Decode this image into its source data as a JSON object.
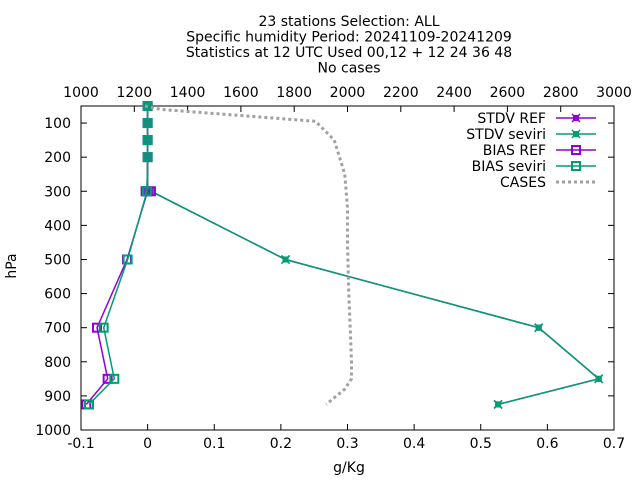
{
  "chart_data": {
    "type": "line",
    "title_lines": [
      "23 stations Selection: ALL",
      "Specific humidity  Period: 20241109-20241209",
      "Statistics at 12 UTC  Used 00,12 + 12 24 36 48",
      "No cases"
    ],
    "xlabel": "g/Kg",
    "ylabel": "hPa",
    "xlim": [
      -0.1,
      0.7
    ],
    "ylim": [
      1000,
      50
    ],
    "x2lim": [
      1000,
      3000
    ],
    "x_ticks": [
      "-0.1",
      "0",
      "0.1",
      "0.2",
      "0.3",
      "0.4",
      "0.5",
      "0.6",
      "0.7"
    ],
    "x2_ticks": [
      "1000",
      "1200",
      "1400",
      "1600",
      "1800",
      "2000",
      "2200",
      "2400",
      "2600",
      "2800",
      "3000"
    ],
    "y_ticks": [
      "100",
      "200",
      "300",
      "400",
      "500",
      "600",
      "700",
      "800",
      "900",
      "1000"
    ],
    "legend_position": "top-right",
    "series": [
      {
        "name": "STDV REF",
        "axis": "x",
        "color": "#9400d3",
        "marker": "x",
        "points": [
          [
            0.0,
            50
          ],
          [
            0.0,
            100
          ],
          [
            0.0,
            150
          ],
          [
            0.0,
            200
          ],
          [
            0.0,
            300
          ],
          [
            0.005,
            300
          ],
          [
            0.207,
            500
          ],
          [
            0.587,
            700
          ],
          [
            0.677,
            850
          ],
          [
            0.526,
            925
          ]
        ]
      },
      {
        "name": "STDV seviri",
        "axis": "x",
        "color": "#009e73",
        "marker": "x",
        "points": [
          [
            0.0,
            50
          ],
          [
            0.0,
            100
          ],
          [
            0.0,
            150
          ],
          [
            0.0,
            200
          ],
          [
            0.0,
            300
          ],
          [
            0.005,
            300
          ],
          [
            0.207,
            500
          ],
          [
            0.587,
            700
          ],
          [
            0.677,
            850
          ],
          [
            0.526,
            925
          ]
        ]
      },
      {
        "name": "BIAS REF",
        "axis": "x",
        "color": "#9400d3",
        "marker": "square",
        "points": [
          [
            0.0,
            50
          ],
          [
            0.0,
            100
          ],
          [
            0.0,
            150
          ],
          [
            0.0,
            200
          ],
          [
            -0.001,
            300
          ],
          [
            -0.003,
            300
          ],
          [
            -0.003,
            300
          ],
          [
            -0.003,
            300
          ],
          [
            -0.003,
            300
          ],
          [
            -0.003,
            300
          ],
          [
            -0.003,
            300
          ],
          [
            0.0,
            300
          ],
          [
            -0.003,
            300
          ],
          [
            -0.003,
            300
          ],
          [
            -0.003,
            300
          ],
          [
            -0.003,
            300
          ],
          [
            -0.003,
            300
          ],
          [
            -0.003,
            300
          ],
          [
            -0.003,
            300
          ],
          [
            -0.003,
            300
          ],
          [
            -0.003,
            300
          ],
          [
            -0.003,
            300
          ],
          [
            -0.003,
            300
          ],
          [
            -0.003,
            300
          ],
          [
            -0.003,
            300
          ],
          [
            -0.003,
            300
          ],
          [
            0.0,
            300
          ],
          [
            0.005,
            300
          ],
          [
            0.005,
            300
          ],
          [
            0.005,
            300
          ],
          [
            0.005,
            300
          ],
          [
            0.005,
            300
          ],
          [
            0.005,
            300
          ],
          [
            0.005,
            300
          ],
          [
            0.005,
            300
          ],
          [
            0.005,
            300
          ],
          [
            0.005,
            300
          ],
          [
            0.005,
            300
          ],
          [
            0.005,
            300
          ],
          [
            0.005,
            300
          ],
          [
            0.005,
            300
          ],
          [
            0.005,
            300
          ],
          [
            0.005,
            300
          ],
          [
            0.005,
            300
          ],
          [
            0.005,
            300
          ],
          [
            0.005,
            300
          ],
          [
            0.005,
            300
          ],
          [
            0.005,
            300
          ],
          [
            0.005,
            300
          ],
          [
            0.005,
            300
          ],
          [
            0.005,
            300
          ],
          [
            0.005,
            300
          ],
          [
            0.005,
            300
          ],
          [
            0.005,
            300
          ],
          [
            0.005,
            300
          ],
          [
            0.005,
            300
          ],
          [
            0.005,
            300
          ],
          [
            0.005,
            300
          ],
          [
            -0.003,
            300
          ],
          [
            -0.003,
            300
          ],
          [
            -0.003,
            300
          ],
          [
            -0.003,
            300
          ],
          [
            -0.003,
            300
          ],
          [
            -0.003,
            300
          ],
          [
            -0.003,
            300
          ],
          [
            -0.003,
            300
          ],
          [
            -0.003,
            300
          ],
          [
            -0.003,
            300
          ],
          [
            -0.003,
            300
          ],
          [
            -0.003,
            300
          ],
          [
            -0.003,
            300
          ],
          [
            -0.003,
            300
          ],
          [
            0.0,
            300
          ],
          [
            0.0,
            300
          ],
          [
            0.0,
            300
          ],
          [
            0.0,
            300
          ],
          [
            -0.031,
            500
          ],
          [
            -0.076,
            700
          ],
          [
            -0.06,
            850
          ],
          [
            -0.092,
            925
          ]
        ]
      },
      {
        "name": "BIAS seviri",
        "axis": "x",
        "color": "#009e73",
        "marker": "square",
        "points": [
          [
            0.0,
            50
          ],
          [
            0.0,
            100
          ],
          [
            0.0,
            150
          ],
          [
            0.0,
            200
          ],
          [
            -0.001,
            300
          ],
          [
            -0.03,
            500
          ],
          [
            -0.066,
            700
          ],
          [
            -0.05,
            850
          ],
          [
            -0.088,
            925
          ]
        ]
      },
      {
        "name": "CASES",
        "axis": "x2",
        "color": "#a0a0a0",
        "marker": "none",
        "dashed": true,
        "points": [
          [
            1240,
            50
          ],
          [
            1300,
            60
          ],
          [
            1880,
            95
          ],
          [
            1950,
            150
          ],
          [
            1990,
            250
          ],
          [
            2000,
            350
          ],
          [
            2000,
            450
          ],
          [
            2005,
            600
          ],
          [
            2010,
            700
          ],
          [
            2015,
            800
          ],
          [
            2015,
            850
          ],
          [
            1990,
            880
          ],
          [
            1920,
            925
          ]
        ]
      }
    ]
  }
}
